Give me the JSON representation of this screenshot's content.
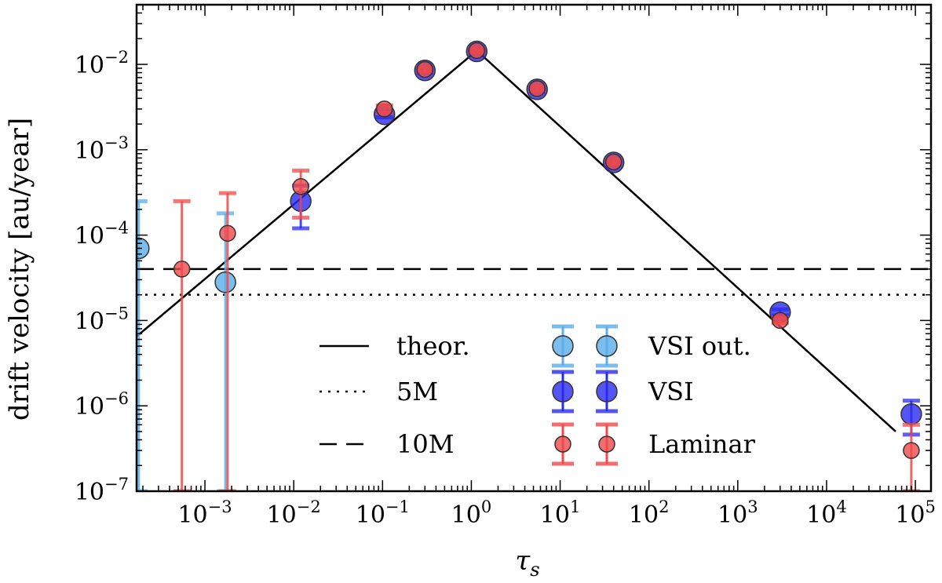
{
  "chart_data": {
    "type": "scatter",
    "title": "",
    "xlabel": "τ",
    "xlabel_sub": "s",
    "ylabel": "drift velocity [au/year]",
    "xscale": "log",
    "yscale": "log",
    "xlim": [
      0.00017,
      150000
    ],
    "ylim": [
      1e-07,
      0.05
    ],
    "x_ticks": [
      {
        "value": 0.001,
        "base": "10",
        "exp": "−3"
      },
      {
        "value": 0.01,
        "base": "10",
        "exp": "−2"
      },
      {
        "value": 0.1,
        "base": "10",
        "exp": "−1"
      },
      {
        "value": 1,
        "base": "10",
        "exp": "0"
      },
      {
        "value": 10,
        "base": "10",
        "exp": "1"
      },
      {
        "value": 100,
        "base": "10",
        "exp": "2"
      },
      {
        "value": 1000,
        "base": "10",
        "exp": "3"
      },
      {
        "value": 10000,
        "base": "10",
        "exp": "4"
      },
      {
        "value": 100000,
        "base": "10",
        "exp": "5"
      }
    ],
    "y_ticks": [
      {
        "value": 1e-07,
        "base": "10",
        "exp": "−7"
      },
      {
        "value": 1e-06,
        "base": "10",
        "exp": "−6"
      },
      {
        "value": 1e-05,
        "base": "10",
        "exp": "−5"
      },
      {
        "value": 0.0001,
        "base": "10",
        "exp": "−4"
      },
      {
        "value": 0.001,
        "base": "10",
        "exp": "−3"
      },
      {
        "value": 0.01,
        "base": "10",
        "exp": "−2"
      }
    ],
    "theory_line": {
      "name": "theor.",
      "style": "solid",
      "points": [
        [
          0.00017,
          6.5e-06
        ],
        [
          1.15,
          0.0145
        ],
        [
          60000,
          5e-07
        ]
      ]
    },
    "horizontal_lines": [
      {
        "name": "5M",
        "style": "dotted",
        "y": 2e-05
      },
      {
        "name": "10M",
        "style": "dashed",
        "y": 4e-05
      }
    ],
    "series": [
      {
        "name": "VSI out.",
        "color": "#5aaeea",
        "marker_size": "large",
        "points": [
          {
            "x": 0.00018,
            "y": 7e-05,
            "lo": 1e-07,
            "hi": 0.00025
          },
          {
            "x": 0.0017,
            "y": 2.8e-05,
            "lo": 1e-07,
            "hi": 0.00018
          }
        ]
      },
      {
        "name": "VSI",
        "color": "#2a2aee",
        "marker_size": "large",
        "points": [
          {
            "x": 0.012,
            "y": 0.00025,
            "lo": 0.00012,
            "hi": 0.00038
          },
          {
            "x": 0.105,
            "y": 0.0026,
            "lo": 0.0024,
            "hi": 0.0028
          },
          {
            "x": 0.3,
            "y": 0.0085,
            "lo": 0.008,
            "hi": 0.009
          },
          {
            "x": 1.15,
            "y": 0.0142,
            "lo": 0.0135,
            "hi": 0.015
          },
          {
            "x": 5.5,
            "y": 0.0051,
            "lo": 0.0048,
            "hi": 0.0054
          },
          {
            "x": 40,
            "y": 0.00071,
            "lo": 0.00067,
            "hi": 0.00075
          },
          {
            "x": 3000,
            "y": 1.25e-05,
            "lo": 1.15e-05,
            "hi": 1.35e-05
          },
          {
            "x": 90000,
            "y": 8e-07,
            "lo": 4.6e-07,
            "hi": 1.15e-06
          }
        ]
      },
      {
        "name": "Laminar",
        "color": "#ef4a4a",
        "marker_size": "small",
        "points": [
          {
            "x": 0.00055,
            "y": 4e-05,
            "lo": 1e-07,
            "hi": 0.00025
          },
          {
            "x": 0.0018,
            "y": 0.000105,
            "lo": 1e-07,
            "hi": 0.00031
          },
          {
            "x": 0.012,
            "y": 0.00037,
            "lo": 0.00016,
            "hi": 0.00057
          },
          {
            "x": 0.105,
            "y": 0.003,
            "lo": 0.0027,
            "hi": 0.0033
          },
          {
            "x": 0.3,
            "y": 0.0087,
            "lo": 0.0082,
            "hi": 0.0092
          },
          {
            "x": 1.15,
            "y": 0.0145,
            "lo": 0.0138,
            "hi": 0.0153
          },
          {
            "x": 5.5,
            "y": 0.0052,
            "lo": 0.0049,
            "hi": 0.0055
          },
          {
            "x": 40,
            "y": 0.00072,
            "lo": 0.00068,
            "hi": 0.00076
          },
          {
            "x": 3000,
            "y": 1e-05,
            "lo": 9.3e-06,
            "hi": 1.08e-05
          },
          {
            "x": 90000,
            "y": 3e-07,
            "lo": 1e-07,
            "hi": 6e-07
          }
        ]
      }
    ],
    "legend": {
      "placement": "bottom-center",
      "lines": [
        {
          "label": "theor.",
          "style": "solid"
        },
        {
          "label": "5M",
          "style": "dotted"
        },
        {
          "label": "10M",
          "style": "dashed"
        }
      ],
      "markers": [
        {
          "label": "VSI out.",
          "series": 0
        },
        {
          "label": "VSI",
          "series": 1
        },
        {
          "label": "Laminar",
          "series": 2
        }
      ]
    }
  }
}
